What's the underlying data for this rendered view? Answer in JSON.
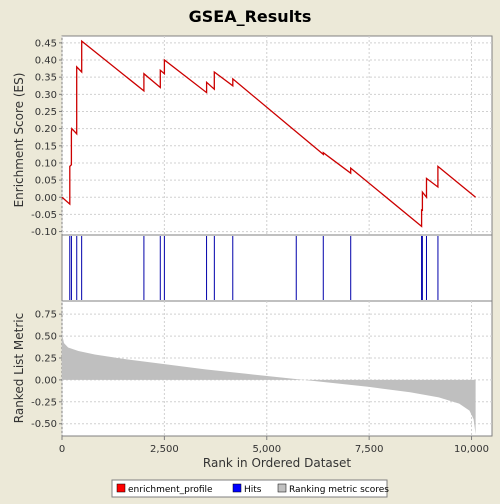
{
  "colors": {
    "background": "#ece9d8",
    "plot_background": "#ffffff",
    "enrichment_line": "#cc0000",
    "hit_line": "#0000aa",
    "metric_fill": "#bfbfbf",
    "grid": "#d0d0d0"
  },
  "chart_data": {
    "title": "GSEA_Results",
    "xlabel": "Rank in Ordered Dataset",
    "xlim": [
      0,
      10500
    ],
    "x_ticks": [
      0,
      2500,
      5000,
      7500,
      10000
    ],
    "x_tick_labels": [
      "0",
      "2,500",
      "5,000",
      "7,500",
      "10,000"
    ],
    "legend": {
      "placement": "bottom",
      "items": [
        {
          "label": "enrichment_profile",
          "color": "#ff0000"
        },
        {
          "label": "Hits",
          "color": "#0000ff"
        },
        {
          "label": "Ranking metric scores",
          "color": "#c0c0c0"
        }
      ]
    },
    "panels": [
      {
        "type": "line",
        "name": "enrichment_profile",
        "ylabel": "Enrichment Score (ES)",
        "ylim": [
          -0.11,
          0.47
        ],
        "y_ticks": [
          -0.1,
          -0.05,
          0.0,
          0.05,
          0.1,
          0.15,
          0.2,
          0.25,
          0.3,
          0.35,
          0.4,
          0.45
        ],
        "y_tick_labels": [
          "-0.10",
          "-0.05",
          "0.00",
          "0.05",
          "0.10",
          "0.15",
          "0.20",
          "0.25",
          "0.30",
          "0.35",
          "0.40",
          "0.45"
        ],
        "grid": true,
        "points": [
          [
            0,
            0.0
          ],
          [
            190,
            -0.02
          ],
          [
            190,
            0.09
          ],
          [
            230,
            0.095
          ],
          [
            230,
            0.19
          ],
          [
            240,
            0.2
          ],
          [
            360,
            0.185
          ],
          [
            360,
            0.38
          ],
          [
            480,
            0.365
          ],
          [
            480,
            0.455
          ],
          [
            2000,
            0.31
          ],
          [
            2000,
            0.36
          ],
          [
            2400,
            0.32
          ],
          [
            2400,
            0.37
          ],
          [
            2500,
            0.36
          ],
          [
            2500,
            0.4
          ],
          [
            3530,
            0.305
          ],
          [
            3530,
            0.335
          ],
          [
            3720,
            0.315
          ],
          [
            3720,
            0.365
          ],
          [
            4170,
            0.325
          ],
          [
            4170,
            0.345
          ],
          [
            6380,
            0.125
          ],
          [
            6380,
            0.13
          ],
          [
            7050,
            0.07
          ],
          [
            7050,
            0.085
          ],
          [
            8780,
            -0.085
          ],
          [
            8780,
            -0.035
          ],
          [
            8800,
            -0.04
          ],
          [
            8800,
            0.015
          ],
          [
            8900,
            0.0
          ],
          [
            8900,
            0.055
          ],
          [
            9180,
            0.03
          ],
          [
            9180,
            0.09
          ],
          [
            10100,
            0.0
          ]
        ]
      },
      {
        "type": "hits",
        "name": "Hits",
        "positions": [
          190,
          230,
          360,
          480,
          2000,
          2400,
          2500,
          3530,
          3720,
          4170,
          5720,
          6380,
          7050,
          8780,
          8800,
          8900,
          9180
        ]
      },
      {
        "type": "area",
        "name": "Ranking metric scores",
        "ylabel": "Ranked List Metric",
        "ylim": [
          -0.64,
          0.9
        ],
        "y_ticks": [
          -0.5,
          -0.25,
          0.0,
          0.25,
          0.5,
          0.75
        ],
        "y_tick_labels": [
          "-0.50",
          "-0.25",
          "0.00",
          "0.25",
          "0.50",
          "0.75"
        ],
        "grid": true,
        "points": [
          [
            0,
            0.52
          ],
          [
            50,
            0.42
          ],
          [
            150,
            0.37
          ],
          [
            400,
            0.33
          ],
          [
            800,
            0.29
          ],
          [
            1500,
            0.24
          ],
          [
            2500,
            0.18
          ],
          [
            3500,
            0.12
          ],
          [
            4500,
            0.07
          ],
          [
            5500,
            0.02
          ],
          [
            5900,
            0.0
          ],
          [
            6500,
            -0.03
          ],
          [
            7500,
            -0.08
          ],
          [
            8500,
            -0.14
          ],
          [
            9200,
            -0.2
          ],
          [
            9700,
            -0.27
          ],
          [
            9950,
            -0.35
          ],
          [
            10050,
            -0.45
          ],
          [
            10100,
            -0.62
          ]
        ]
      }
    ]
  }
}
